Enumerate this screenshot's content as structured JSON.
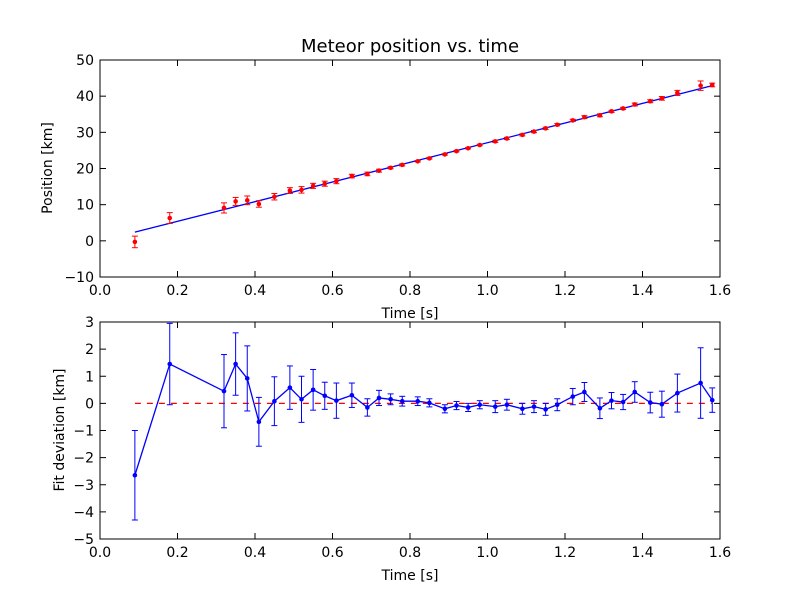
{
  "chart_data": [
    {
      "type": "scatter",
      "title": "Meteor position vs. time",
      "xlabel": "Time [s]",
      "ylabel": "Position [km]",
      "xlim": [
        0.0,
        1.6
      ],
      "ylim": [
        -10,
        50
      ],
      "xticks": [
        "0.0",
        "0.2",
        "0.4",
        "0.6",
        "0.8",
        "1.0",
        "1.2",
        "1.4",
        "1.6"
      ],
      "yticks": [
        "−10",
        "0",
        "10",
        "20",
        "30",
        "40",
        "50"
      ],
      "grid": false,
      "colors": {
        "points": "#ff0000",
        "errorbars": "#ff0000",
        "fit": "#0000ff"
      },
      "fit_line": {
        "x": [
          0.09,
          1.58
        ],
        "y": [
          2.4,
          42.9
        ]
      },
      "series": [
        {
          "x": [
            0.09,
            0.18,
            0.32,
            0.35,
            0.38,
            0.41,
            0.45,
            0.49,
            0.52,
            0.55,
            0.58,
            0.61,
            0.65,
            0.69,
            0.72,
            0.75,
            0.78,
            0.82,
            0.85,
            0.89,
            0.92,
            0.95,
            0.98,
            1.02,
            1.05,
            1.09,
            1.12,
            1.15,
            1.18,
            1.22,
            1.25,
            1.29,
            1.32,
            1.35,
            1.38,
            1.42,
            1.45,
            1.49,
            1.55,
            1.58
          ],
          "y": [
            -0.3,
            6.3,
            9.1,
            10.9,
            11.2,
            10.2,
            12.2,
            13.9,
            14.1,
            15.2,
            15.8,
            16.5,
            17.9,
            18.5,
            19.4,
            20.2,
            21.0,
            22.0,
            22.8,
            23.9,
            24.8,
            25.6,
            26.5,
            27.5,
            28.3,
            29.3,
            30.2,
            31.1,
            32.1,
            33.3,
            34.2,
            34.7,
            35.8,
            36.6,
            37.7,
            38.6,
            39.4,
            40.9,
            42.9,
            43.1
          ],
          "err": [
            1.6,
            1.5,
            1.4,
            1.1,
            1.2,
            0.9,
            0.9,
            0.8,
            0.9,
            0.7,
            0.7,
            0.7,
            0.5,
            0.5,
            0.4,
            0.3,
            0.3,
            0.2,
            0.2,
            0.2,
            0.2,
            0.2,
            0.2,
            0.3,
            0.3,
            0.3,
            0.3,
            0.3,
            0.3,
            0.3,
            0.4,
            0.4,
            0.3,
            0.3,
            0.4,
            0.4,
            0.5,
            0.7,
            1.3,
            0.5
          ]
        }
      ]
    },
    {
      "type": "line",
      "title": "",
      "xlabel": "Time [s]",
      "ylabel": "Fit deviation [km]",
      "xlim": [
        0.0,
        1.6
      ],
      "ylim": [
        -5,
        3
      ],
      "xticks": [
        "0.0",
        "0.2",
        "0.4",
        "0.6",
        "0.8",
        "1.0",
        "1.2",
        "1.4",
        "1.6"
      ],
      "yticks": [
        "−5",
        "−4",
        "−3",
        "−2",
        "−1",
        "0",
        "1",
        "2",
        "3"
      ],
      "grid": false,
      "colors": {
        "line": "#0000ff",
        "errorbars": "#0000ff",
        "zero_line": "#ff0000"
      },
      "zero_line": {
        "y": 0,
        "x": [
          0.09,
          1.58
        ],
        "style": "dashed"
      },
      "series": [
        {
          "x": [
            0.09,
            0.18,
            0.32,
            0.35,
            0.38,
            0.41,
            0.45,
            0.49,
            0.52,
            0.55,
            0.58,
            0.61,
            0.65,
            0.69,
            0.72,
            0.75,
            0.78,
            0.82,
            0.85,
            0.89,
            0.92,
            0.95,
            0.98,
            1.02,
            1.05,
            1.09,
            1.12,
            1.15,
            1.18,
            1.22,
            1.25,
            1.29,
            1.32,
            1.35,
            1.38,
            1.42,
            1.45,
            1.49,
            1.55,
            1.58
          ],
          "y": [
            -2.65,
            1.45,
            0.45,
            1.45,
            0.92,
            -0.68,
            0.08,
            0.58,
            0.15,
            0.5,
            0.28,
            0.1,
            0.3,
            -0.15,
            0.2,
            0.15,
            0.08,
            0.08,
            0.02,
            -0.2,
            -0.08,
            -0.15,
            -0.05,
            -0.12,
            -0.05,
            -0.2,
            -0.12,
            -0.22,
            -0.05,
            0.25,
            0.42,
            -0.18,
            0.1,
            0.05,
            0.42,
            0.03,
            -0.03,
            0.38,
            0.75,
            0.12
          ],
          "err": [
            1.65,
            1.5,
            1.35,
            1.15,
            1.2,
            0.9,
            0.9,
            0.8,
            0.85,
            0.75,
            0.5,
            0.65,
            0.45,
            0.32,
            0.28,
            0.2,
            0.18,
            0.16,
            0.15,
            0.15,
            0.15,
            0.15,
            0.15,
            0.22,
            0.2,
            0.2,
            0.22,
            0.22,
            0.22,
            0.3,
            0.35,
            0.38,
            0.3,
            0.28,
            0.38,
            0.38,
            0.48,
            0.7,
            1.3,
            0.45
          ]
        }
      ]
    }
  ]
}
